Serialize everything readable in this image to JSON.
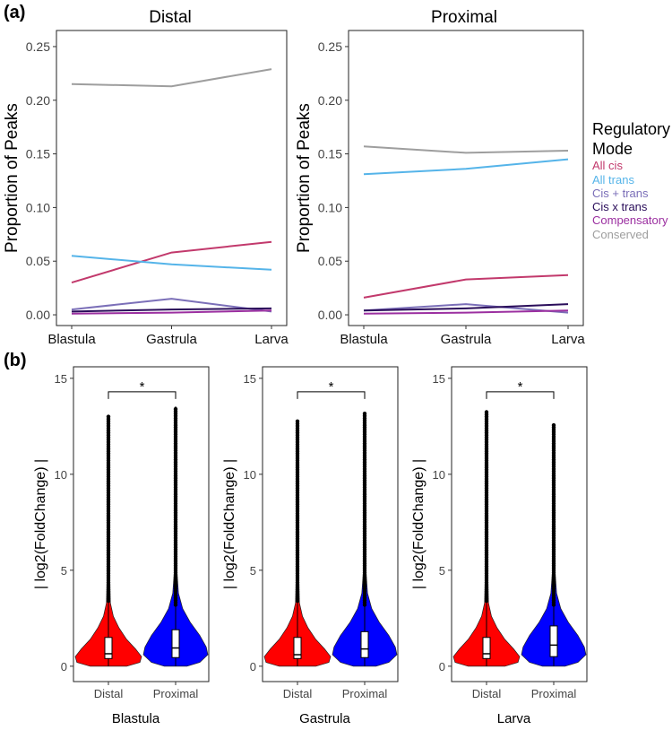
{
  "panel_a_label": "(a)",
  "panel_b_label": "(b)",
  "legend": {
    "title_line1": "Regulatory",
    "title_line2": "Mode",
    "items": [
      {
        "label": "All cis",
        "color": "#c2396c"
      },
      {
        "label": "All trans",
        "color": "#55b4e9"
      },
      {
        "label": "Cis + trans",
        "color": "#7b6fb8"
      },
      {
        "label": "Cis x trans",
        "color": "#2a0d5a"
      },
      {
        "label": "Compensatory",
        "color": "#9b2fa0"
      },
      {
        "label": "Conserved",
        "color": "#9e9e9e"
      }
    ]
  },
  "chart_data": [
    {
      "type": "line",
      "title": "Distal",
      "ylabel": "Proportion of Peaks",
      "xlabel": "",
      "categories": [
        "Blastula",
        "Gastrula",
        "Larva"
      ],
      "ylim": [
        -0.01,
        0.265
      ],
      "yticks": [
        "0.00",
        "0.05",
        "0.10",
        "0.15",
        "0.20",
        "0.25"
      ],
      "series": [
        {
          "name": "All cis",
          "values": [
            0.03,
            0.058,
            0.068
          ]
        },
        {
          "name": "All trans",
          "values": [
            0.055,
            0.047,
            0.042
          ]
        },
        {
          "name": "Cis + trans",
          "values": [
            0.005,
            0.015,
            0.003
          ]
        },
        {
          "name": "Cis x trans",
          "values": [
            0.003,
            0.005,
            0.006
          ]
        },
        {
          "name": "Compensatory",
          "values": [
            0.001,
            0.002,
            0.004
          ]
        },
        {
          "name": "Conserved",
          "values": [
            0.215,
            0.213,
            0.229
          ]
        }
      ]
    },
    {
      "type": "line",
      "title": "Proximal",
      "ylabel": "Proportion of Peaks",
      "xlabel": "",
      "categories": [
        "Blastula",
        "Gastrula",
        "Larva"
      ],
      "ylim": [
        -0.01,
        0.265
      ],
      "yticks": [
        "0.00",
        "0.05",
        "0.10",
        "0.15",
        "0.20",
        "0.25"
      ],
      "series": [
        {
          "name": "All cis",
          "values": [
            0.016,
            0.033,
            0.037
          ]
        },
        {
          "name": "All trans",
          "values": [
            0.131,
            0.136,
            0.145
          ]
        },
        {
          "name": "Cis + trans",
          "values": [
            0.004,
            0.01,
            0.002
          ]
        },
        {
          "name": "Cis x trans",
          "values": [
            0.004,
            0.006,
            0.01
          ]
        },
        {
          "name": "Compensatory",
          "values": [
            0.001,
            0.002,
            0.004
          ]
        },
        {
          "name": "Conserved",
          "values": [
            0.157,
            0.151,
            0.153
          ]
        }
      ]
    },
    {
      "type": "violin",
      "title": "Blastula",
      "ylabel": "| log2(FoldChange) |",
      "categories": [
        "Distal",
        "Proximal"
      ],
      "colors": [
        "#ff0000",
        "#0000ff"
      ],
      "ylim": [
        -0.8,
        15.6
      ],
      "yticks": [
        "0",
        "5",
        "10",
        "15"
      ],
      "significance": "*",
      "box": [
        {
          "q1": 0.4,
          "median": 0.65,
          "q3": 1.5,
          "max": 13.0
        },
        {
          "q1": 0.45,
          "median": 0.95,
          "q3": 1.9,
          "max": 13.5
        }
      ]
    },
    {
      "type": "violin",
      "title": "Gastrula",
      "ylabel": "| log2(FoldChange) |",
      "categories": [
        "Distal",
        "Proximal"
      ],
      "colors": [
        "#ff0000",
        "#0000ff"
      ],
      "ylim": [
        -0.8,
        15.6
      ],
      "yticks": [
        "0",
        "5",
        "10",
        "15"
      ],
      "significance": "*",
      "box": [
        {
          "q1": 0.4,
          "median": 0.6,
          "q3": 1.5,
          "max": 12.8
        },
        {
          "q1": 0.45,
          "median": 0.9,
          "q3": 1.8,
          "max": 13.2
        }
      ]
    },
    {
      "type": "violin",
      "title": "Larva",
      "ylabel": "| log2(FoldChange) |",
      "categories": [
        "Distal",
        "Proximal"
      ],
      "colors": [
        "#ff0000",
        "#0000ff"
      ],
      "ylim": [
        -0.8,
        15.6
      ],
      "yticks": [
        "0",
        "5",
        "10",
        "15"
      ],
      "significance": "*",
      "box": [
        {
          "q1": 0.4,
          "median": 0.65,
          "q3": 1.5,
          "max": 13.3
        },
        {
          "q1": 0.5,
          "median": 1.1,
          "q3": 2.1,
          "max": 12.6
        }
      ]
    }
  ]
}
